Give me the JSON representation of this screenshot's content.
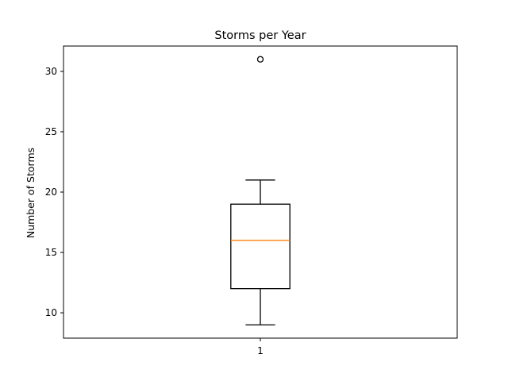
{
  "chart_data": {
    "type": "boxplot",
    "title": "Storms per Year",
    "xlabel": "",
    "ylabel": "Number of Storms",
    "categories": [
      "1"
    ],
    "ylim": [
      7.9,
      32.1
    ],
    "yticks": [
      10,
      15,
      20,
      25,
      30
    ],
    "boxes": [
      {
        "label": "1",
        "whisker_low": 9,
        "q1": 12,
        "median": 16,
        "q3": 19,
        "whisker_high": 21,
        "outliers": [
          31
        ]
      }
    ],
    "grid": false,
    "colors": {
      "box": "#000000",
      "median": "#ff7f0e",
      "outlier": "#000000"
    }
  }
}
